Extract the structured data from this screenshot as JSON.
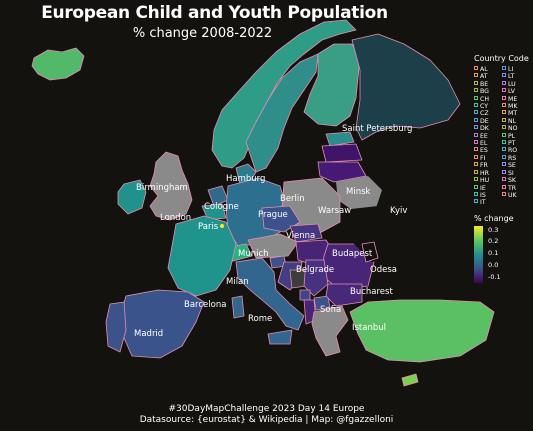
{
  "title": "European Child and Youth Population",
  "subtitle": "% change 2008-2022",
  "legend_countries": {
    "title": "Country Code",
    "codes": [
      "AL",
      "AT",
      "BE",
      "BG",
      "CH",
      "CY",
      "CZ",
      "DE",
      "DK",
      "EE",
      "EL",
      "ES",
      "FI",
      "FR",
      "HR",
      "HU",
      "IE",
      "IS",
      "IT",
      "LI",
      "LT",
      "LU",
      "LV",
      "ME",
      "MK",
      "MT",
      "NL",
      "NO",
      "PL",
      "PT",
      "RO",
      "RS",
      "SE",
      "SI",
      "SK",
      "TR",
      "UK"
    ]
  },
  "legend_change": {
    "title": "% change",
    "ticks": [
      "0.3",
      "0.2",
      "0.1",
      "0.0",
      "-0.1"
    ],
    "tick_values": [
      0.3,
      0.2,
      0.1,
      0.0,
      -0.1
    ],
    "range": [
      -0.15,
      0.33
    ],
    "colors": [
      "#fde725",
      "#5ec962",
      "#21918c",
      "#3b528b",
      "#440154"
    ]
  },
  "cities": [
    "Saint Petersburg",
    "Birmingham",
    "Hamburg",
    "Minsk",
    "London",
    "Cologne",
    "Berlin",
    "Warsaw",
    "Kyiv",
    "Paris",
    "Prague",
    "Vienna",
    "Munich",
    "Budapest",
    "Belgrade",
    "Odesa",
    "Milan",
    "Bucharest",
    "Barcelona",
    "Rome",
    "Sofia",
    "Istanbul",
    "Madrid"
  ],
  "footer": {
    "line1": "#30DayMapChallenge 2023 Day 14 Europe",
    "line2": "Datasource: {eurostat} & Wikipedia | Map: @fgazzelloni"
  },
  "colors": {
    "background": "#14120f",
    "no_data": "#8a8a8a",
    "border": "#e58fb0"
  }
}
